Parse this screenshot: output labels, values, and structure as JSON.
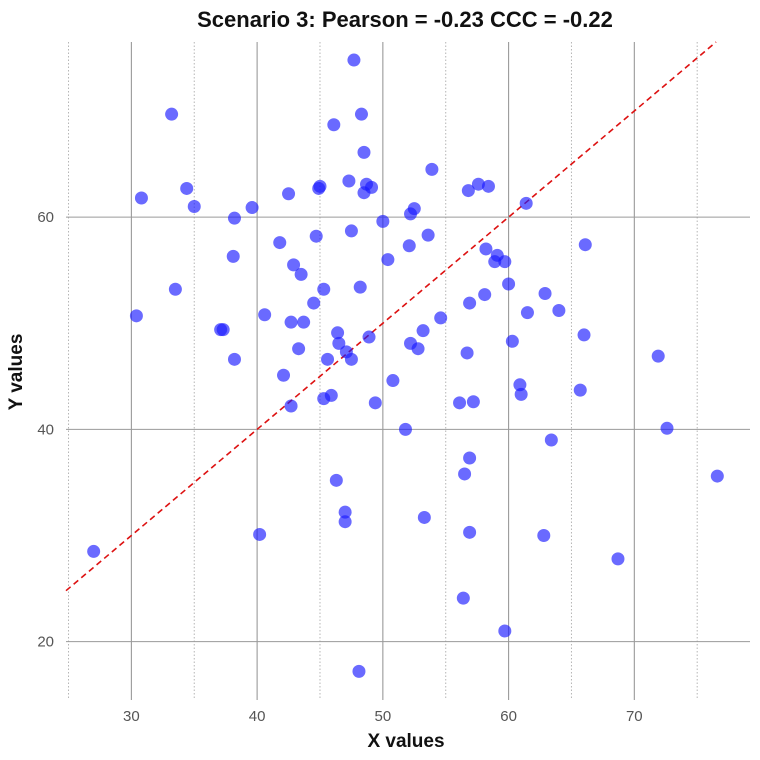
{
  "chart_data": {
    "type": "scatter",
    "title": "Scenario 3: Pearson = -0.23 CCC = -0.22",
    "xlabel": "X values",
    "ylabel": "Y values",
    "xlim": [
      24.8,
      79.2
    ],
    "ylim": [
      14.5,
      76.5
    ],
    "x_ticks": [
      30,
      40,
      50,
      60,
      70
    ],
    "y_ticks": [
      20,
      40,
      60
    ],
    "x_tick_labels": [
      "30",
      "40",
      "50",
      "60",
      "70"
    ],
    "y_tick_labels": [
      "20",
      "40",
      "60"
    ],
    "grid": true,
    "reference_line": {
      "type": "identity",
      "slope": 1,
      "intercept": 0,
      "style": "dashed",
      "color": "#dd1111"
    },
    "point_color": "#1a1aff",
    "points": [
      [
        27,
        28.5
      ],
      [
        30.4,
        50.7
      ],
      [
        30.8,
        61.8
      ],
      [
        33.2,
        69.7
      ],
      [
        33.5,
        53.2
      ],
      [
        34.4,
        62.7
      ],
      [
        35,
        61
      ],
      [
        37.1,
        49.4
      ],
      [
        37.3,
        49.4
      ],
      [
        38.1,
        56.3
      ],
      [
        38.2,
        59.9
      ],
      [
        38.2,
        46.6
      ],
      [
        39.6,
        60.9
      ],
      [
        40.2,
        30.1
      ],
      [
        40.6,
        50.8
      ],
      [
        41.8,
        57.6
      ],
      [
        42.1,
        45.1
      ],
      [
        42.5,
        62.2
      ],
      [
        42.7,
        42.2
      ],
      [
        42.7,
        50.1
      ],
      [
        42.9,
        55.5
      ],
      [
        43.3,
        47.6
      ],
      [
        43.5,
        54.6
      ],
      [
        43.7,
        50.1
      ],
      [
        44.5,
        51.9
      ],
      [
        44.7,
        58.2
      ],
      [
        44.9,
        62.7
      ],
      [
        45,
        62.9
      ],
      [
        45.3,
        53.2
      ],
      [
        45.3,
        42.9
      ],
      [
        45.6,
        46.6
      ],
      [
        45.9,
        43.2
      ],
      [
        46.1,
        68.7
      ],
      [
        46.3,
        35.2
      ],
      [
        46.4,
        49.1
      ],
      [
        46.5,
        48.1
      ],
      [
        47,
        31.3
      ],
      [
        47,
        32.2
      ],
      [
        47.1,
        47.3
      ],
      [
        47.3,
        63.4
      ],
      [
        47.5,
        46.6
      ],
      [
        47.5,
        58.7
      ],
      [
        47.7,
        74.8
      ],
      [
        48.1,
        17.2
      ],
      [
        48.2,
        53.4
      ],
      [
        48.3,
        69.7
      ],
      [
        48.5,
        66.1
      ],
      [
        48.5,
        62.3
      ],
      [
        48.7,
        63.1
      ],
      [
        48.9,
        48.7
      ],
      [
        49.1,
        62.8
      ],
      [
        49.4,
        42.5
      ],
      [
        50,
        59.6
      ],
      [
        50.4,
        56
      ],
      [
        50.8,
        44.6
      ],
      [
        51.8,
        40
      ],
      [
        52.1,
        57.3
      ],
      [
        52.2,
        60.3
      ],
      [
        52.2,
        48.1
      ],
      [
        52.5,
        60.8
      ],
      [
        52.8,
        47.6
      ],
      [
        53.2,
        49.3
      ],
      [
        53.3,
        31.7
      ],
      [
        53.6,
        58.3
      ],
      [
        53.9,
        64.5
      ],
      [
        54.6,
        50.5
      ],
      [
        56.1,
        42.5
      ],
      [
        56.4,
        24.1
      ],
      [
        56.5,
        35.8
      ],
      [
        56.7,
        47.2
      ],
      [
        56.8,
        62.5
      ],
      [
        56.9,
        37.3
      ],
      [
        56.9,
        51.9
      ],
      [
        56.9,
        30.3
      ],
      [
        57.2,
        42.6
      ],
      [
        57.6,
        63.1
      ],
      [
        58.1,
        52.7
      ],
      [
        58.2,
        57
      ],
      [
        58.4,
        62.9
      ],
      [
        58.9,
        55.8
      ],
      [
        59.1,
        56.4
      ],
      [
        59.7,
        21
      ],
      [
        59.7,
        55.8
      ],
      [
        60,
        53.7
      ],
      [
        60.3,
        48.3
      ],
      [
        60.9,
        44.2
      ],
      [
        61,
        43.3
      ],
      [
        61.4,
        61.3
      ],
      [
        61.5,
        51
      ],
      [
        62.8,
        30
      ],
      [
        62.9,
        52.8
      ],
      [
        63.4,
        39
      ],
      [
        64,
        51.2
      ],
      [
        65.7,
        43.7
      ],
      [
        66,
        48.9
      ],
      [
        66.1,
        57.4
      ],
      [
        68.7,
        27.8
      ],
      [
        71.9,
        46.9
      ],
      [
        72.6,
        40.1
      ],
      [
        76.6,
        35.6
      ]
    ]
  }
}
